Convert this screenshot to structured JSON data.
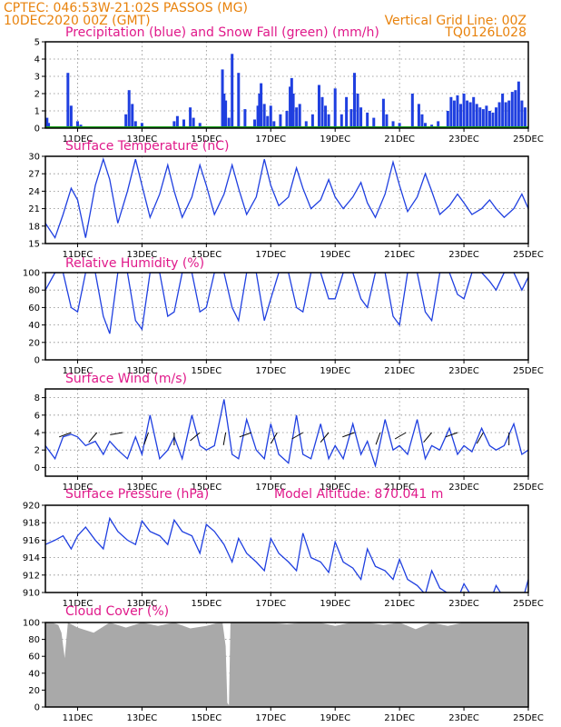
{
  "header": {
    "line1": "CPTEC:   046:53W-21:02S   PASSOS (MG)",
    "line2": "10DEC2020 00Z (GMT)",
    "grid_note": "Vertical Grid Line: 00Z",
    "code": "TQ0126L028"
  },
  "colors": {
    "header": "#e8820c",
    "title": "#e0198a",
    "series": "#1f3fe0",
    "snow": "#1aa01a",
    "cloud": "#a9a9a9"
  },
  "x_axis": {
    "range": [
      "10DEC2020 00Z",
      "25DEC2020 00Z"
    ],
    "tick_labels": [
      "11DEC",
      "13DEC",
      "15DEC",
      "17DEC",
      "19DEC",
      "21DEC",
      "23DEC",
      "25DEC"
    ],
    "tick_days": [
      1,
      3,
      5,
      7,
      9,
      11,
      13,
      15
    ]
  },
  "chart_data": [
    {
      "type": "bar",
      "title": "Precipitation (blue) and Snow Fall (green) (mm/h)",
      "ylim": [
        0,
        5
      ],
      "yticks": [
        0,
        1,
        2,
        3,
        4,
        5
      ],
      "grid": true,
      "x_unit": "days since 10DEC2020 00Z",
      "series": [
        {
          "name": "Precipitation",
          "color": "#1f3fe0",
          "x": [
            0.05,
            0.1,
            0.7,
            0.8,
            1.0,
            1.1,
            2.5,
            2.6,
            2.7,
            2.8,
            3.0,
            3.05,
            4.0,
            4.1,
            4.3,
            4.5,
            4.6,
            4.8,
            5.5,
            5.55,
            5.6,
            5.7,
            5.8,
            6.0,
            6.2,
            6.5,
            6.6,
            6.65,
            6.7,
            6.8,
            6.9,
            7.0,
            7.1,
            7.3,
            7.5,
            7.6,
            7.65,
            7.7,
            7.8,
            7.9,
            8.1,
            8.3,
            8.5,
            8.6,
            8.7,
            8.8,
            9.0,
            9.2,
            9.35,
            9.5,
            9.6,
            9.7,
            9.8,
            10.0,
            10.2,
            10.5,
            10.6,
            10.8,
            11.0,
            11.4,
            11.6,
            11.7,
            11.8,
            12.0,
            12.2,
            12.5,
            12.6,
            12.7,
            12.8,
            12.9,
            13.0,
            13.1,
            13.2,
            13.3,
            13.4,
            13.5,
            13.6,
            13.7,
            13.8,
            13.9,
            14.0,
            14.1,
            14.2,
            14.3,
            14.4,
            14.5,
            14.6,
            14.7,
            14.8,
            14.9
          ],
          "values": [
            0.6,
            0.3,
            3.2,
            1.3,
            0.4,
            0.2,
            0.8,
            2.2,
            1.4,
            0.4,
            0.3,
            0.1,
            0.4,
            0.7,
            0.5,
            1.2,
            0.6,
            0.3,
            3.4,
            2.0,
            1.6,
            0.6,
            4.3,
            3.2,
            1.1,
            0.5,
            1.3,
            2.0,
            2.6,
            1.4,
            0.7,
            1.3,
            0.4,
            0.8,
            1.0,
            2.4,
            2.9,
            2.0,
            1.2,
            1.4,
            0.4,
            0.8,
            2.5,
            1.8,
            1.3,
            0.8,
            2.3,
            0.8,
            1.8,
            1.1,
            3.2,
            2.0,
            1.2,
            0.9,
            0.6,
            1.7,
            0.8,
            0.4,
            0.3,
            2.0,
            1.4,
            0.8,
            0.3,
            0.2,
            0.4,
            1.0,
            1.8,
            1.6,
            1.9,
            1.4,
            2.0,
            1.6,
            1.5,
            1.8,
            1.4,
            1.2,
            1.1,
            1.3,
            1.0,
            0.9,
            1.2,
            1.5,
            2.0,
            1.5,
            1.6,
            2.1,
            2.2,
            2.7,
            1.6,
            1.2
          ]
        },
        {
          "name": "Snow Fall",
          "color": "#1aa01a",
          "x": [
            0,
            15
          ],
          "values": [
            0,
            0
          ]
        }
      ]
    },
    {
      "type": "line",
      "title": "Surface Temperature (nC)",
      "ylim": [
        15,
        30
      ],
      "yticks": [
        15,
        18,
        21,
        24,
        27,
        30
      ],
      "grid": true,
      "x_unit": "days since 10DEC2020 00Z",
      "series": [
        {
          "color": "#1f3fe0",
          "x": [
            0,
            0.3,
            0.55,
            0.8,
            1.0,
            1.25,
            1.55,
            1.8,
            2.0,
            2.25,
            2.55,
            2.8,
            3.0,
            3.25,
            3.55,
            3.8,
            4.0,
            4.25,
            4.55,
            4.8,
            5.0,
            5.25,
            5.55,
            5.8,
            6.0,
            6.25,
            6.55,
            6.8,
            7.0,
            7.25,
            7.55,
            7.8,
            8.0,
            8.25,
            8.55,
            8.8,
            9.0,
            9.25,
            9.55,
            9.8,
            10.0,
            10.25,
            10.55,
            10.8,
            11.0,
            11.25,
            11.55,
            11.8,
            12.0,
            12.25,
            12.55,
            12.8,
            13.0,
            13.25,
            13.55,
            13.8,
            14.0,
            14.25,
            14.55,
            14.8,
            15.0
          ],
          "values": [
            18.5,
            16,
            20,
            24.5,
            22.5,
            16,
            25,
            29.5,
            26,
            18.5,
            24,
            29.5,
            25,
            19.5,
            23.5,
            28.5,
            24,
            19.5,
            23,
            28.5,
            25,
            20,
            23.5,
            28.5,
            24.5,
            20,
            23,
            29.5,
            25,
            21.5,
            23,
            28,
            24.5,
            21,
            22.5,
            26,
            23,
            21,
            23,
            25.5,
            22,
            19.5,
            23.5,
            29,
            25,
            20.5,
            23,
            27,
            24,
            20,
            21.5,
            23.5,
            22,
            20,
            21,
            22.5,
            21,
            19.5,
            21,
            23.5,
            21
          ]
        }
      ]
    },
    {
      "type": "line",
      "title": "Relative Humidity (%)",
      "ylim": [
        0,
        100
      ],
      "yticks": [
        0,
        20,
        40,
        60,
        80,
        100
      ],
      "grid": true,
      "x_unit": "days since 10DEC2020 00Z",
      "series": [
        {
          "color": "#1f3fe0",
          "x": [
            0,
            0.3,
            0.55,
            0.8,
            1.0,
            1.25,
            1.55,
            1.8,
            2.0,
            2.25,
            2.55,
            2.8,
            3.0,
            3.25,
            3.55,
            3.8,
            4.0,
            4.25,
            4.55,
            4.8,
            5.0,
            5.25,
            5.55,
            5.8,
            6.0,
            6.25,
            6.55,
            6.8,
            7.0,
            7.25,
            7.55,
            7.8,
            8.0,
            8.25,
            8.55,
            8.8,
            9.0,
            9.25,
            9.55,
            9.8,
            10.0,
            10.25,
            10.55,
            10.8,
            11.0,
            11.25,
            11.55,
            11.8,
            12.0,
            12.25,
            12.55,
            12.8,
            13.0,
            13.25,
            13.55,
            13.8,
            14.0,
            14.25,
            14.55,
            14.8,
            15.0
          ],
          "values": [
            80,
            100,
            100,
            60,
            55,
            100,
            100,
            50,
            30,
            100,
            100,
            45,
            35,
            100,
            100,
            50,
            55,
            100,
            100,
            55,
            60,
            100,
            100,
            60,
            45,
            100,
            100,
            45,
            70,
            100,
            100,
            60,
            55,
            100,
            100,
            70,
            70,
            100,
            100,
            70,
            60,
            100,
            100,
            50,
            40,
            100,
            100,
            55,
            45,
            100,
            100,
            75,
            70,
            100,
            100,
            90,
            80,
            100,
            100,
            80,
            95
          ]
        }
      ]
    },
    {
      "type": "line",
      "title": "Surface Wind (m/s)",
      "ylim": [
        -1,
        9
      ],
      "yticks": [
        0,
        2,
        4,
        6,
        8
      ],
      "grid": true,
      "x_unit": "days since 10DEC2020 00Z",
      "series": [
        {
          "color": "#1f3fe0",
          "x": [
            0,
            0.3,
            0.55,
            0.8,
            1.0,
            1.25,
            1.55,
            1.8,
            2.0,
            2.25,
            2.55,
            2.8,
            3.0,
            3.25,
            3.55,
            3.8,
            4.0,
            4.25,
            4.55,
            4.8,
            5.0,
            5.25,
            5.55,
            5.8,
            6.0,
            6.25,
            6.55,
            6.8,
            7.0,
            7.25,
            7.55,
            7.8,
            8.0,
            8.25,
            8.55,
            8.8,
            9.0,
            9.25,
            9.55,
            9.8,
            10.0,
            10.25,
            10.55,
            10.8,
            11.0,
            11.25,
            11.55,
            11.8,
            12.0,
            12.25,
            12.55,
            12.8,
            13.0,
            13.25,
            13.55,
            13.8,
            14.0,
            14.25,
            14.55,
            14.8,
            15.0
          ],
          "values": [
            2.5,
            1.0,
            3.5,
            3.8,
            3.5,
            2.5,
            3.0,
            1.5,
            3.0,
            2.0,
            1.0,
            3.5,
            1.5,
            6.0,
            1.0,
            2.0,
            3.5,
            1.0,
            6.0,
            2.5,
            2.0,
            2.5,
            7.8,
            1.5,
            1.0,
            5.5,
            2.0,
            1.0,
            5.0,
            1.5,
            0.5,
            6.0,
            1.5,
            1.0,
            5.0,
            1.0,
            2.5,
            1.0,
            5.0,
            1.5,
            3.0,
            0.2,
            5.5,
            2.0,
            2.5,
            1.5,
            5.5,
            1.0,
            2.5,
            2.0,
            4.5,
            1.5,
            2.5,
            1.8,
            4.5,
            2.5,
            2.0,
            2.5,
            5.0,
            1.5,
            2.0
          ]
        }
      ]
    },
    {
      "type": "line",
      "title": "Surface Pressure (hPa)",
      "subtitle": "Model Altitude: 870.041 m",
      "ylim": [
        910,
        920
      ],
      "yticks": [
        910,
        912,
        914,
        916,
        918,
        920
      ],
      "grid": true,
      "x_unit": "days since 10DEC2020 00Z",
      "series": [
        {
          "color": "#1f3fe0",
          "x": [
            0,
            0.3,
            0.55,
            0.8,
            1.0,
            1.25,
            1.55,
            1.8,
            2.0,
            2.25,
            2.55,
            2.8,
            3.0,
            3.25,
            3.55,
            3.8,
            4.0,
            4.25,
            4.55,
            4.8,
            5.0,
            5.25,
            5.55,
            5.8,
            6.0,
            6.25,
            6.55,
            6.8,
            7.0,
            7.25,
            7.55,
            7.8,
            8.0,
            8.25,
            8.55,
            8.8,
            9.0,
            9.25,
            9.55,
            9.8,
            10.0,
            10.25,
            10.55,
            10.8,
            11.0,
            11.25,
            11.55,
            11.8,
            12.0,
            12.25,
            12.55,
            12.8,
            13.0,
            13.25,
            13.55,
            13.8,
            14.0,
            14.25,
            14.55,
            14.8,
            15.0
          ],
          "values": [
            915.5,
            916,
            916.5,
            915,
            916.5,
            917.5,
            916,
            915,
            918.5,
            917,
            916,
            915.5,
            918.2,
            917,
            916.5,
            915.5,
            918.3,
            917,
            916.5,
            914.5,
            917.8,
            917,
            915.5,
            913.5,
            916.2,
            914.5,
            913.5,
            912.5,
            916.2,
            914.5,
            913.5,
            912.5,
            916.8,
            914,
            913.5,
            912.3,
            915.8,
            913.5,
            912.8,
            911.5,
            915.0,
            913,
            912.5,
            911.5,
            913.8,
            911.5,
            910.8,
            909.8,
            912.5,
            910.5,
            909.8,
            909.2,
            911.0,
            909.5,
            909.2,
            908.8,
            910.8,
            909.3,
            909.0,
            908.8,
            911.5
          ]
        }
      ]
    },
    {
      "type": "area",
      "title": "Cloud Cover (%)",
      "ylim": [
        0,
        100
      ],
      "yticks": [
        0,
        20,
        40,
        60,
        80,
        100
      ],
      "grid": true,
      "x_unit": "days since 10DEC2020 00Z",
      "series": [
        {
          "color": "#a9a9a9",
          "x": [
            0,
            0.2,
            0.4,
            0.5,
            0.6,
            0.7,
            1.0,
            1.5,
            2.0,
            2.5,
            3.0,
            3.5,
            4.0,
            4.5,
            5.0,
            5.3,
            5.5,
            5.6,
            5.65,
            5.7,
            5.75,
            5.8,
            6.0,
            6.5,
            7.0,
            7.5,
            8.0,
            8.5,
            9.0,
            9.5,
            10.0,
            10.5,
            11.0,
            11.5,
            12.0,
            12.5,
            13.0,
            13.5,
            14.0,
            14.5,
            15.0
          ],
          "values": [
            100,
            100,
            97,
            88,
            58,
            100,
            94,
            88,
            100,
            94,
            100,
            96,
            100,
            93,
            96,
            99,
            100,
            72,
            5,
            2,
            100,
            100,
            100,
            100,
            100,
            98,
            100,
            100,
            96,
            100,
            100,
            97,
            100,
            92,
            100,
            96,
            100,
            100,
            100,
            100,
            100
          ]
        }
      ]
    }
  ]
}
